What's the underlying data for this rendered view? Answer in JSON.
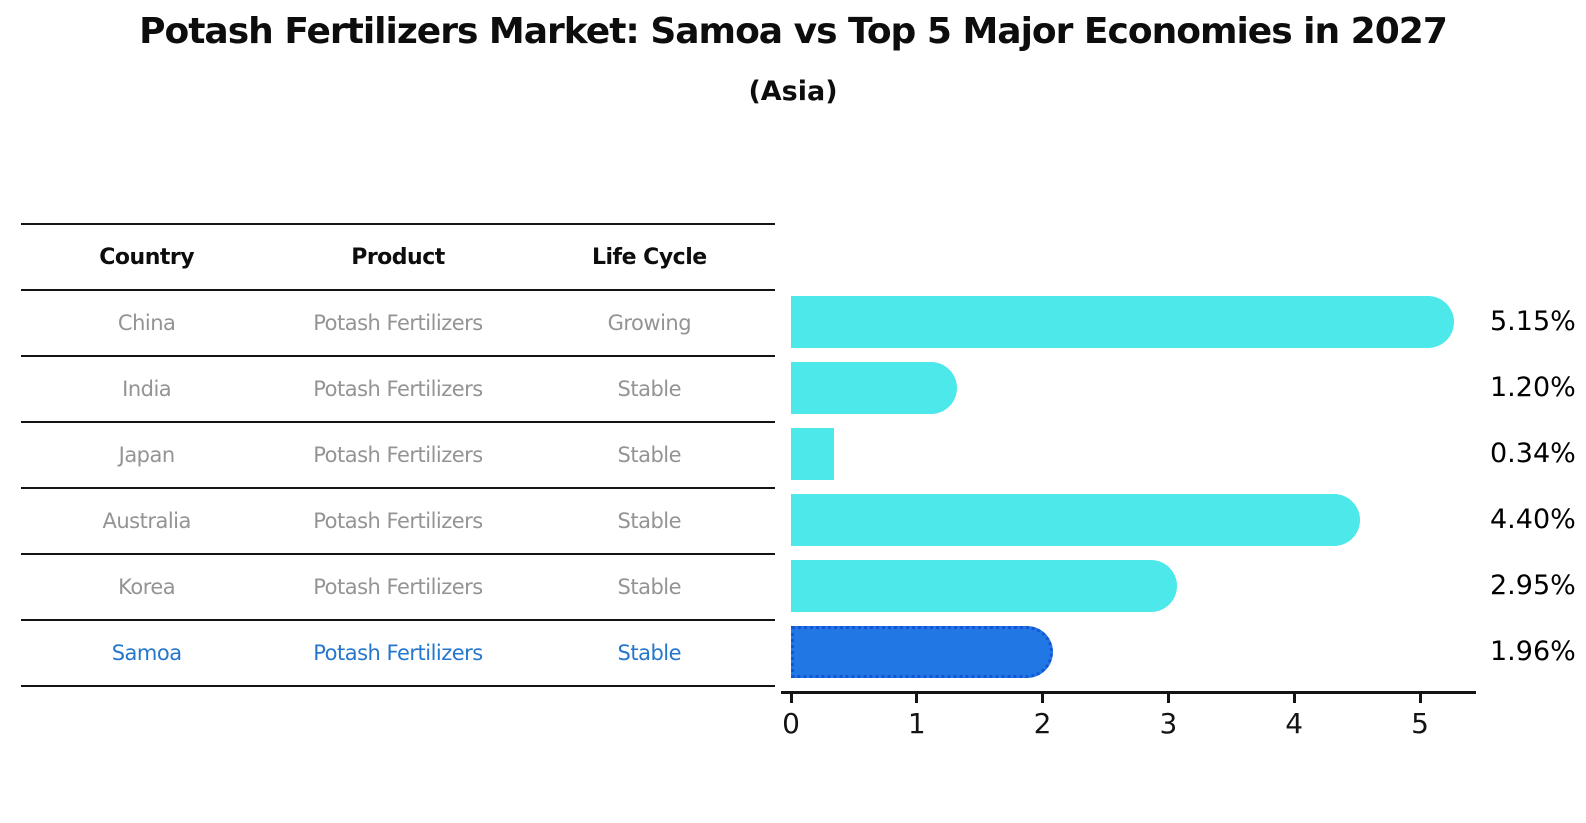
{
  "chart_data": {
    "type": "bar",
    "orientation": "horizontal",
    "title": "Potash Fertilizers Market: Samoa vs Top 5 Major Economies in 2027",
    "subtitle": "(Asia)",
    "categories": [
      "China",
      "India",
      "Japan",
      "Australia",
      "Korea",
      "Samoa"
    ],
    "values": [
      5.15,
      1.2,
      0.34,
      4.4,
      2.95,
      1.96
    ],
    "value_labels": [
      "5.15%",
      "1.20%",
      "0.34%",
      "4.40%",
      "2.95%",
      "1.96%"
    ],
    "xticks": [
      "0",
      "1",
      "2",
      "3",
      "4",
      "5"
    ],
    "xlim": [
      0,
      5.45
    ],
    "grid": false,
    "legend": false,
    "bar_color": "#4DE8EA",
    "highlight_index": 5,
    "highlight_color": "#2177E3",
    "highlight_border_color": "#1256D6"
  },
  "table": {
    "columns": [
      "Country",
      "Product",
      "Life Cycle"
    ],
    "rows": [
      {
        "country": "China",
        "product": "Potash Fertilizers",
        "life_cycle": "Growing"
      },
      {
        "country": "India",
        "product": "Potash Fertilizers",
        "life_cycle": "Stable"
      },
      {
        "country": "Japan",
        "product": "Potash Fertilizers",
        "life_cycle": "Stable"
      },
      {
        "country": "Australia",
        "product": "Potash Fertilizers",
        "life_cycle": "Stable"
      },
      {
        "country": "Korea",
        "product": "Potash Fertilizers",
        "life_cycle": "Stable"
      },
      {
        "country": "Samoa",
        "product": "Potash Fertilizers",
        "life_cycle": "Stable"
      }
    ],
    "highlight_row": "Samoa",
    "highlight_text_color": "#2577CD"
  },
  "colors": {
    "row_text": "#949494",
    "header_text": "#0d0d0d",
    "line": "#141414",
    "value_label_text": "#000000"
  }
}
